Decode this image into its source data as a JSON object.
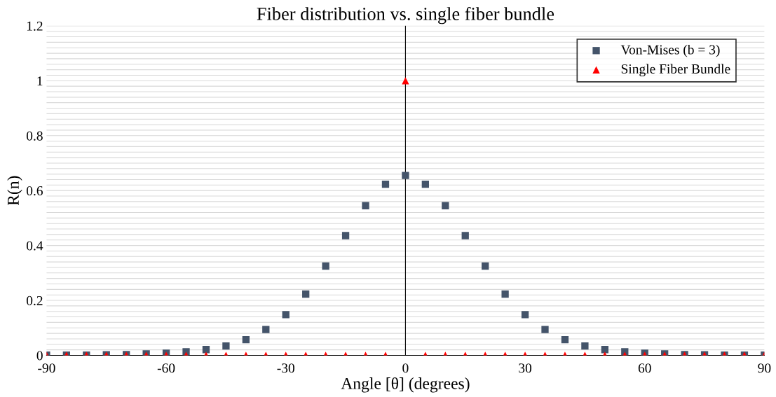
{
  "chart_data": {
    "type": "scatter",
    "title": "Fiber distribution vs. single fiber bundle",
    "xlabel": "Angle [θ] (degrees)",
    "ylabel": "R(n)",
    "x": [
      -90,
      -85,
      -80,
      -75,
      -70,
      -65,
      -60,
      -55,
      -50,
      -45,
      -40,
      -35,
      -30,
      -25,
      -20,
      -15,
      -10,
      -5,
      0,
      5,
      10,
      15,
      20,
      25,
      30,
      35,
      40,
      45,
      50,
      55,
      60,
      65,
      70,
      75,
      80,
      85,
      90
    ],
    "series": [
      {
        "name": "Von-Mises (b = 3)",
        "color": "#44546a",
        "marker": "square",
        "values": [
          0.001,
          0.001,
          0.001,
          0.002,
          0.003,
          0.005,
          0.008,
          0.013,
          0.021,
          0.034,
          0.057,
          0.094,
          0.148,
          0.223,
          0.325,
          0.436,
          0.545,
          0.623,
          0.655,
          0.623,
          0.545,
          0.436,
          0.325,
          0.223,
          0.148,
          0.094,
          0.057,
          0.034,
          0.021,
          0.013,
          0.008,
          0.005,
          0.003,
          0.002,
          0.001,
          0.001,
          0.001
        ]
      },
      {
        "name": "Single Fiber Bundle",
        "color": "#ff0000",
        "marker": "triangle",
        "values": [
          0,
          0,
          0,
          0,
          0,
          0,
          0,
          0,
          0,
          0,
          0,
          0,
          0,
          0,
          0,
          0,
          0,
          0,
          1,
          0,
          0,
          0,
          0,
          0,
          0,
          0,
          0,
          0,
          0,
          0,
          0,
          0,
          0,
          0,
          0,
          0,
          0
        ]
      }
    ],
    "xlim": [
      -90,
      90
    ],
    "xticks": [
      -90,
      -60,
      -30,
      0,
      30,
      60,
      90
    ],
    "ylim": [
      0,
      1.2
    ],
    "yticks": [
      0,
      0.2,
      0.4,
      0.6,
      0.8,
      1,
      1.2
    ],
    "grid": "y",
    "legend": "top right",
    "ref_lines": [
      {
        "axis": "x",
        "value": 0,
        "color": "#000000"
      }
    ]
  }
}
